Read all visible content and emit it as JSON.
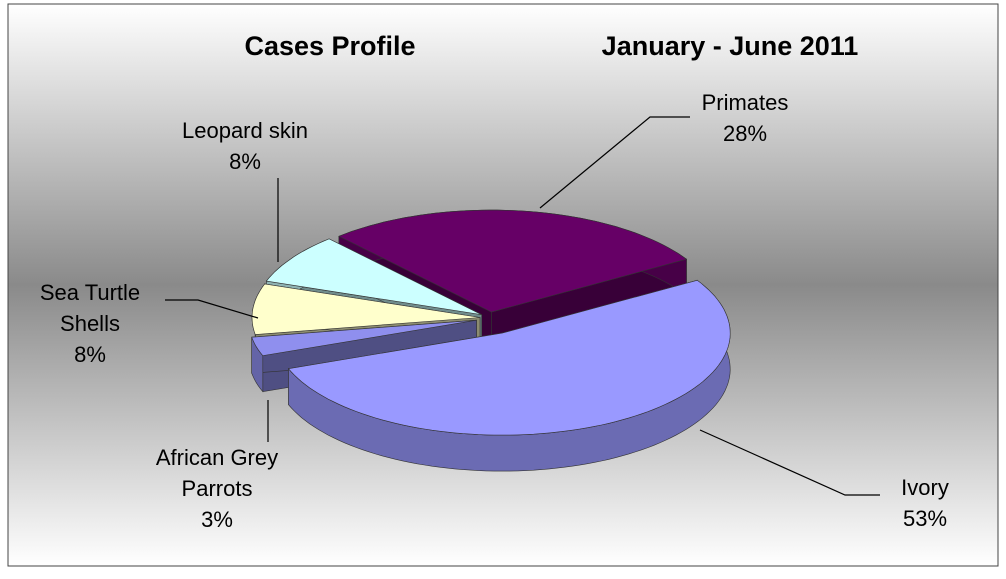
{
  "chart_data": {
    "type": "pie3d",
    "title": "Cases Profile",
    "subtitle": "January - June 2011",
    "categories": [
      "Primates",
      "Ivory",
      "African Grey Parrots",
      "Sea Turtle Shells",
      "Leopard skin"
    ],
    "values": [
      28,
      53,
      3,
      8,
      8
    ],
    "value_labels": [
      "28%",
      "53%",
      "3%",
      "8%",
      "8%"
    ],
    "colors": [
      "#660066",
      "#9999ff",
      "#8f8fee",
      "#ffffcc",
      "#ccffff"
    ]
  }
}
